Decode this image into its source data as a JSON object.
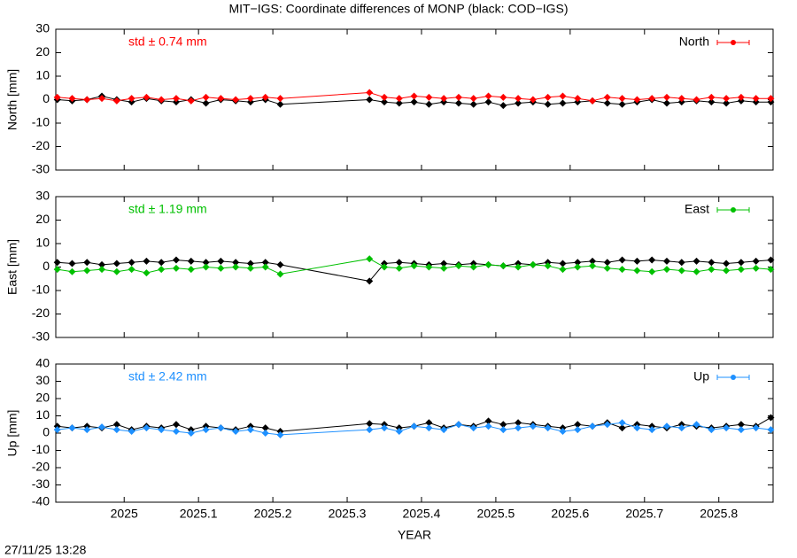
{
  "title": "MIT−IGS: Coordinate differences of MONP (black: COD−IGS)",
  "timestamp": "27/11/25 13:28",
  "chart_data": [
    {
      "type": "line",
      "ylabel": "North [mm]",
      "annotation": "std ± 0.74 mm",
      "legend": "top-right",
      "x": [
        2024.91,
        2024.93,
        2024.95,
        2024.97,
        2024.99,
        2025.01,
        2025.03,
        2025.05,
        2025.07,
        2025.09,
        2025.11,
        2025.13,
        2025.15,
        2025.17,
        2025.19,
        2025.21,
        2025.33,
        2025.35,
        2025.37,
        2025.39,
        2025.41,
        2025.43,
        2025.45,
        2025.47,
        2025.49,
        2025.51,
        2025.53,
        2025.55,
        2025.57,
        2025.59,
        2025.61,
        2025.63,
        2025.65,
        2025.67,
        2025.69,
        2025.71,
        2025.73,
        2025.75,
        2025.77,
        2025.79,
        2025.81,
        2025.83,
        2025.85,
        2025.87
      ],
      "series": [
        {
          "color": "#000000",
          "values": [
            0,
            -0.5,
            0,
            1.5,
            0,
            -1,
            0.5,
            -0.5,
            -1,
            0,
            -1.5,
            0,
            -0.5,
            -1,
            0,
            -2,
            0,
            -1,
            -1.5,
            -1,
            -2,
            -1,
            -1.5,
            -2,
            -1,
            -2.5,
            -1.5,
            -1,
            -2,
            -1.5,
            -1,
            -0.5,
            -1.5,
            -2,
            -1,
            0,
            -1.5,
            -1,
            -0.5,
            -1,
            -1.5,
            -0.5,
            -1,
            -1
          ]
        },
        {
          "name": "North",
          "color": "#ff0000",
          "values": [
            1,
            0.5,
            0,
            0.5,
            -0.5,
            0.5,
            1,
            0,
            0.5,
            -0.5,
            1,
            0.5,
            0,
            0.5,
            1,
            0.5,
            3,
            1,
            0.5,
            1.5,
            1,
            0.5,
            1,
            0.5,
            1.5,
            1,
            0.5,
            0,
            1,
            1.5,
            0.5,
            -0.5,
            1,
            0.5,
            0,
            0.5,
            1,
            0.5,
            0,
            1,
            0.5,
            1,
            0.5,
            0.5
          ]
        }
      ],
      "xlim": [
        2024.908,
        2025.873
      ],
      "ylim": [
        -30,
        30
      ],
      "xticks": [
        2025,
        2025.1,
        2025.2,
        2025.3,
        2025.4,
        2025.5,
        2025.6,
        2025.7,
        2025.8
      ],
      "yticks": [
        -30,
        -20,
        -10,
        0,
        10,
        20,
        30
      ]
    },
    {
      "type": "line",
      "ylabel": "East [mm]",
      "annotation": "std ± 1.19 mm",
      "legend": "top-right",
      "x": [
        2024.91,
        2024.93,
        2024.95,
        2024.97,
        2024.99,
        2025.01,
        2025.03,
        2025.05,
        2025.07,
        2025.09,
        2025.11,
        2025.13,
        2025.15,
        2025.17,
        2025.19,
        2025.21,
        2025.33,
        2025.35,
        2025.37,
        2025.39,
        2025.41,
        2025.43,
        2025.45,
        2025.47,
        2025.49,
        2025.51,
        2025.53,
        2025.55,
        2025.57,
        2025.59,
        2025.61,
        2025.63,
        2025.65,
        2025.67,
        2025.69,
        2025.71,
        2025.73,
        2025.75,
        2025.77,
        2025.79,
        2025.81,
        2025.83,
        2025.85,
        2025.87
      ],
      "series": [
        {
          "color": "#000000",
          "values": [
            2,
            1.5,
            2,
            1,
            1.5,
            2,
            2.5,
            2,
            3,
            2.5,
            2,
            2.5,
            2,
            1.5,
            2,
            1,
            -6,
            1.5,
            2,
            1.5,
            1,
            1.5,
            1,
            1.5,
            1,
            0.5,
            1.5,
            1,
            2,
            1.5,
            2,
            2.5,
            2,
            3,
            2.5,
            3,
            2.5,
            2,
            2.5,
            2,
            1.5,
            2,
            2.5,
            3
          ]
        },
        {
          "name": "East",
          "color": "#00c000",
          "values": [
            -1,
            -2,
            -1.5,
            -1,
            -2,
            -1,
            -2.5,
            -1,
            -0.5,
            -1,
            0,
            -0.5,
            0,
            -0.5,
            0,
            -3,
            3.5,
            0,
            -0.5,
            0.5,
            0,
            -0.5,
            0.5,
            0,
            1,
            0.5,
            0,
            1,
            0.5,
            -1,
            0,
            0.5,
            -0.5,
            -1,
            -1.5,
            -2,
            -1,
            -1.5,
            -2,
            -1,
            -1.5,
            -1,
            -0.5,
            -1
          ]
        }
      ],
      "xlim": [
        2024.908,
        2025.873
      ],
      "ylim": [
        -30,
        30
      ],
      "xticks": [
        2025,
        2025.1,
        2025.2,
        2025.3,
        2025.4,
        2025.5,
        2025.6,
        2025.7,
        2025.8
      ],
      "yticks": [
        -30,
        -20,
        -10,
        0,
        10,
        20,
        30
      ]
    },
    {
      "type": "line",
      "ylabel": "Up [mm]",
      "annotation": "std ± 2.42 mm",
      "legend": "top-right",
      "xlabel": "YEAR",
      "x": [
        2024.91,
        2024.93,
        2024.95,
        2024.97,
        2024.99,
        2025.01,
        2025.03,
        2025.05,
        2025.07,
        2025.09,
        2025.11,
        2025.13,
        2025.15,
        2025.17,
        2025.19,
        2025.21,
        2025.33,
        2025.35,
        2025.37,
        2025.39,
        2025.41,
        2025.43,
        2025.45,
        2025.47,
        2025.49,
        2025.51,
        2025.53,
        2025.55,
        2025.57,
        2025.59,
        2025.61,
        2025.63,
        2025.65,
        2025.67,
        2025.69,
        2025.71,
        2025.73,
        2025.75,
        2025.77,
        2025.79,
        2025.81,
        2025.83,
        2025.85,
        2025.87
      ],
      "series": [
        {
          "color": "#000000",
          "values": [
            4,
            3,
            4,
            3,
            5,
            2,
            4,
            3,
            5,
            2,
            4,
            3,
            2,
            4,
            3,
            1,
            5.5,
            5,
            3,
            4,
            6,
            3,
            5,
            4,
            7,
            5,
            6,
            5,
            4,
            3,
            5,
            4,
            6,
            3,
            5,
            4,
            3,
            5,
            4,
            3,
            4,
            5,
            4,
            9
          ]
        },
        {
          "name": "Up",
          "color": "#1e90ff",
          "values": [
            2,
            3,
            2,
            3.5,
            2,
            1,
            3,
            2,
            1,
            0,
            2,
            3,
            1,
            2,
            0,
            -1,
            2,
            3,
            1,
            4,
            3,
            2,
            5,
            3,
            4,
            2,
            3,
            4,
            3,
            1,
            2,
            4,
            5,
            6,
            3,
            2,
            4,
            3,
            5,
            2,
            3,
            2,
            3,
            2
          ]
        }
      ],
      "xlim": [
        2024.908,
        2025.873
      ],
      "ylim": [
        -40,
        40
      ],
      "xticks": [
        2025,
        2025.1,
        2025.2,
        2025.3,
        2025.4,
        2025.5,
        2025.6,
        2025.7,
        2025.8
      ],
      "yticks": [
        -40,
        -30,
        -20,
        -10,
        0,
        10,
        20,
        30,
        40
      ]
    }
  ]
}
